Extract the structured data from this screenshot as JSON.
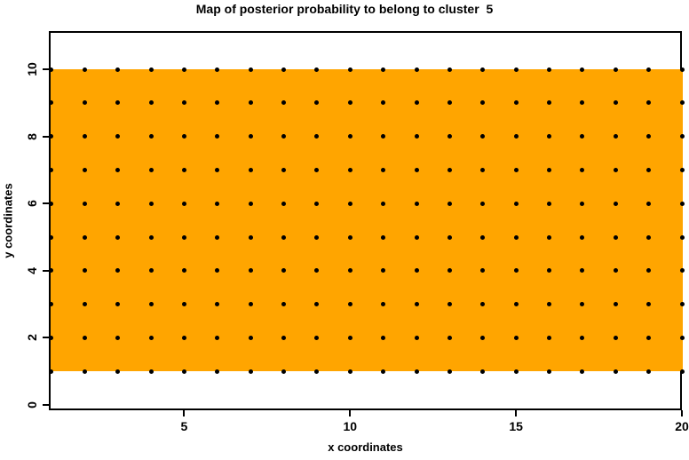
{
  "title": "Map of posterior probability to belong to cluster  5",
  "chart_data": {
    "type": "scatter",
    "title": "Map of posterior probability to belong to cluster  5",
    "xlabel": "x coordinates",
    "ylabel": "y coordinates",
    "xlim": [
      0.92,
      20
    ],
    "ylim": [
      -0.16,
      11.14
    ],
    "x_ticks": [
      5,
      10,
      15,
      20
    ],
    "y_ticks": [
      0,
      2,
      4,
      6,
      8,
      10
    ],
    "grid": false,
    "legend": "none",
    "grid_points": {
      "description": "regular lattice of black dots, one at every integer (x,y) combination",
      "x_values": [
        1,
        2,
        3,
        4,
        5,
        6,
        7,
        8,
        9,
        10,
        11,
        12,
        13,
        14,
        15,
        16,
        17,
        18,
        19,
        20
      ],
      "y_values": [
        1,
        2,
        3,
        4,
        5,
        6,
        7,
        8,
        9,
        10
      ],
      "point_color": "#000000"
    },
    "cluster_region": {
      "description": "solid filled rectangle of high posterior probability spanning the full plot width",
      "x_range": [
        1,
        20
      ],
      "extends_full_width": true,
      "y_range": [
        1,
        10
      ],
      "fill_color": "#ffa500"
    }
  },
  "colors": {
    "background": "#ffffff",
    "axis": "#000000",
    "region_fill": "#ffa500",
    "points": "#000000"
  }
}
